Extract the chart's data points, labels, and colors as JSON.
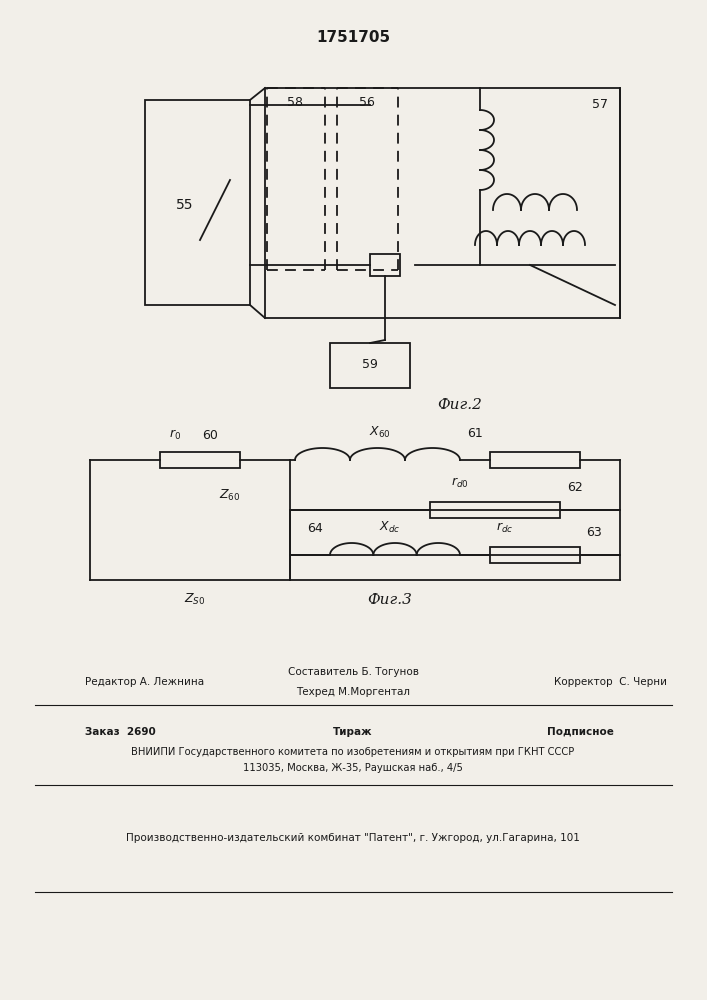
{
  "title": "1751705",
  "fig2_label": "Фиг.2",
  "fig3_label": "Фиг.3",
  "bg_color": "#f2efe9",
  "line_color": "#1a1a1a",
  "footer_line1_left": "Редактор А. Лежнина",
  "footer_line1_mid_top": "Составитель Б. Тогунов",
  "footer_line1_mid_bot": "Техред М.Моргентал",
  "footer_line1_right": "Корректор  С. Черни",
  "footer_line2_col1": "Заказ  2690",
  "footer_line2_col2": "Тираж",
  "footer_line2_col3": "Подписное",
  "footer_line3": "ВНИИПИ Государственного комитета по изобретениям и открытиям при ГКНТ СССР",
  "footer_line4": "113035, Москва, Ж-35, Раушская наб., 4/5",
  "footer_line5": "Производственно-издательский комбинат \"Патент\", г. Ужгород, ул.Гагарина, 101"
}
